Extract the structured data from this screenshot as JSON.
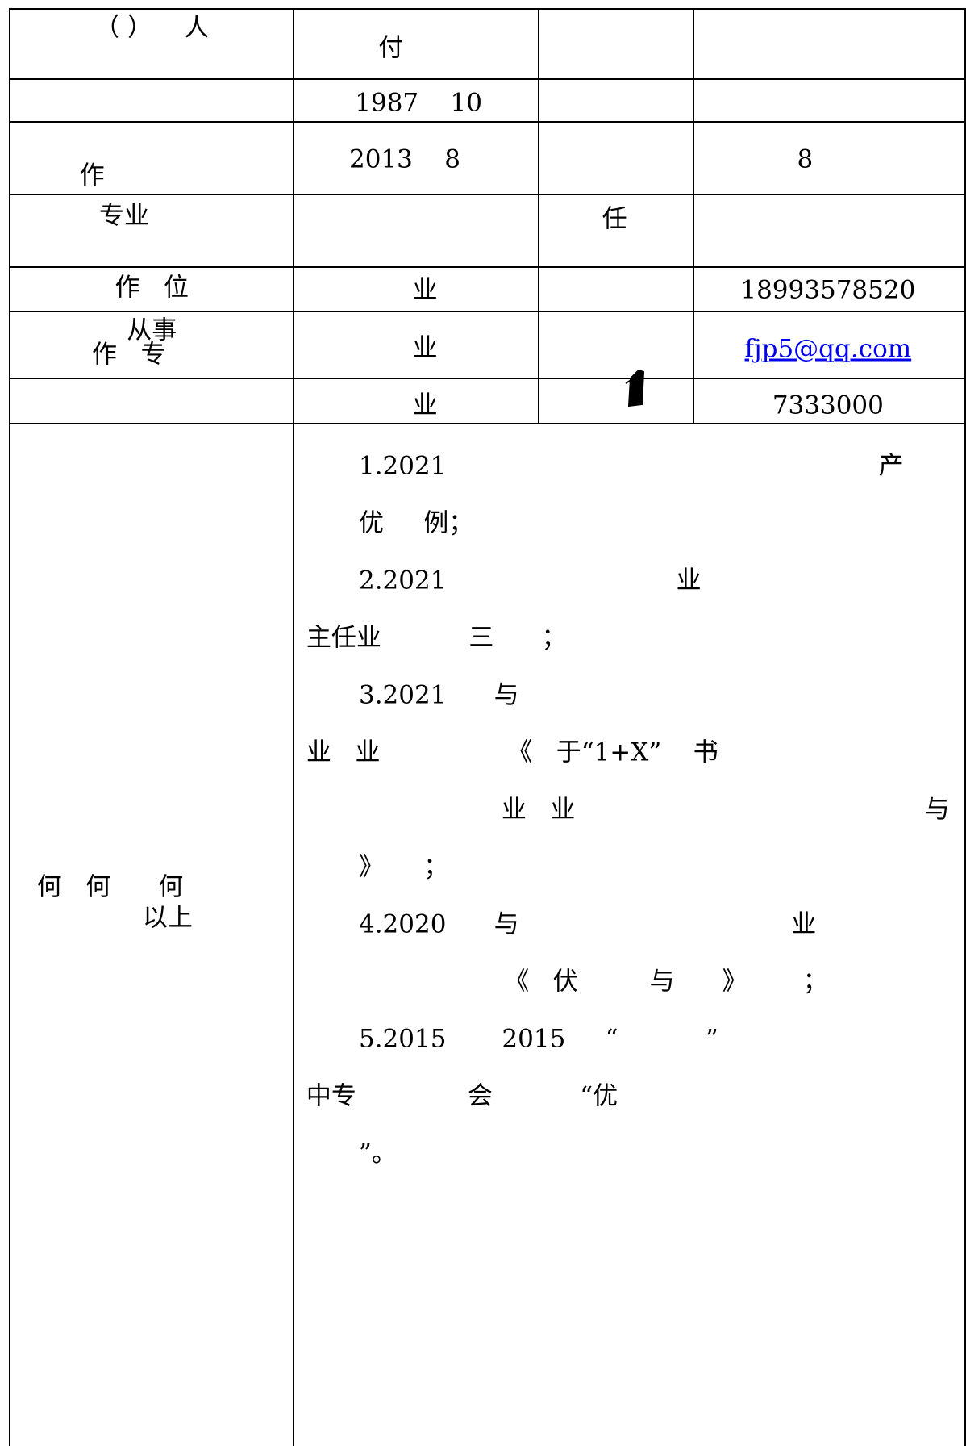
{
  "cells": [
    "（ ）    人",
    "付",
    "1987    10",
    "作",
    "2013    8",
    "8",
    "专业",
    "任",
    "作   位",
    "业",
    "18993578520",
    "从事",
    "作   专",
    "业",
    "fjp5@qq.com",
    "业",
    "7333000"
  ],
  "left_label": [
    "何   何      何",
    "以上"
  ],
  "achievements": [
    "1.2021",
    "产",
    "优     例；",
    "2.2021",
    "业",
    "主任业           三      ；",
    "3.2021      与",
    "业   业                《   于“1+X”    书",
    "业   业",
    "与",
    "》     ；",
    "4.2020      与",
    "业",
    "《   伏         与      》       ；",
    "5.2015       2015     “           ”",
    "中专              会           “优",
    "”。"
  ]
}
